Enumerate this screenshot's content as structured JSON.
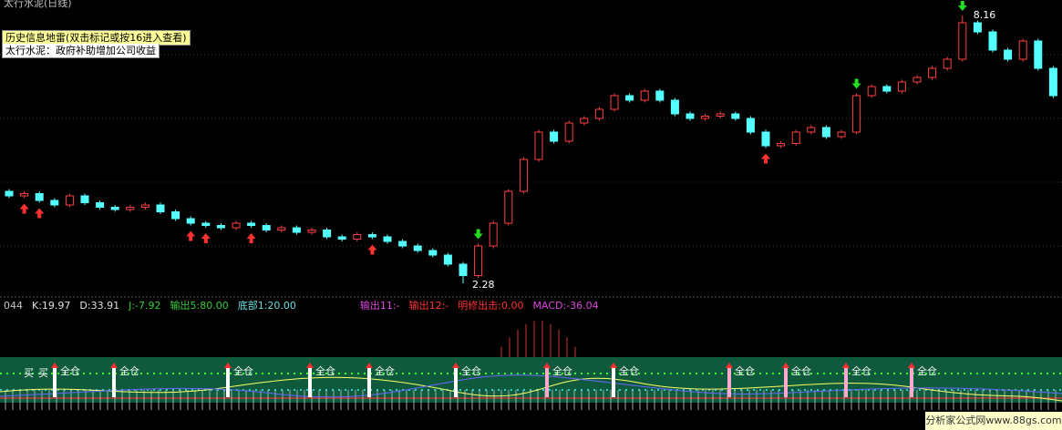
{
  "header": {
    "title": "太行水泥(日线)"
  },
  "mine": {
    "line1": "历史信息地雷(双击标记或按16进入查看)",
    "line2": "太行水泥：政府补助增加公司收益"
  },
  "price": {
    "ylim": [
      2.0,
      8.4
    ],
    "high_label": "8.16",
    "low_label": "2.28",
    "candles": [
      [
        4.3,
        4.35,
        4.15,
        4.2
      ],
      [
        4.2,
        4.3,
        4.15,
        4.25
      ],
      [
        4.25,
        4.3,
        4.05,
        4.1
      ],
      [
        4.1,
        4.15,
        3.95,
        4.0
      ],
      [
        4.0,
        4.25,
        3.95,
        4.2
      ],
      [
        4.2,
        4.25,
        4.0,
        4.05
      ],
      [
        4.05,
        4.1,
        3.9,
        3.95
      ],
      [
        3.95,
        4.0,
        3.85,
        3.9
      ],
      [
        3.9,
        4.0,
        3.85,
        3.95
      ],
      [
        3.95,
        4.05,
        3.9,
        4.0
      ],
      [
        4.0,
        4.05,
        3.8,
        3.85
      ],
      [
        3.85,
        3.9,
        3.65,
        3.7
      ],
      [
        3.7,
        3.75,
        3.55,
        3.6
      ],
      [
        3.6,
        3.65,
        3.5,
        3.55
      ],
      [
        3.55,
        3.6,
        3.45,
        3.5
      ],
      [
        3.5,
        3.65,
        3.45,
        3.6
      ],
      [
        3.6,
        3.65,
        3.5,
        3.55
      ],
      [
        3.55,
        3.6,
        3.4,
        3.45
      ],
      [
        3.45,
        3.55,
        3.4,
        3.5
      ],
      [
        3.5,
        3.55,
        3.35,
        3.4
      ],
      [
        3.4,
        3.5,
        3.35,
        3.45
      ],
      [
        3.45,
        3.5,
        3.25,
        3.3
      ],
      [
        3.3,
        3.35,
        3.2,
        3.25
      ],
      [
        3.25,
        3.4,
        3.2,
        3.35
      ],
      [
        3.35,
        3.4,
        3.25,
        3.3
      ],
      [
        3.3,
        3.35,
        3.15,
        3.2
      ],
      [
        3.2,
        3.25,
        3.05,
        3.1
      ],
      [
        3.1,
        3.15,
        2.95,
        3.0
      ],
      [
        3.0,
        3.05,
        2.85,
        2.9
      ],
      [
        2.9,
        2.95,
        2.65,
        2.7
      ],
      [
        2.7,
        2.75,
        2.28,
        2.45
      ],
      [
        2.45,
        3.15,
        2.4,
        3.1
      ],
      [
        3.1,
        3.65,
        3.05,
        3.6
      ],
      [
        3.6,
        4.35,
        3.55,
        4.3
      ],
      [
        4.3,
        5.05,
        4.25,
        5.0
      ],
      [
        5.0,
        5.65,
        4.95,
        5.6
      ],
      [
        5.6,
        5.65,
        5.35,
        5.4
      ],
      [
        5.4,
        5.85,
        5.35,
        5.8
      ],
      [
        5.8,
        5.95,
        5.75,
        5.9
      ],
      [
        5.9,
        6.15,
        5.85,
        6.1
      ],
      [
        6.1,
        6.45,
        6.05,
        6.4
      ],
      [
        6.4,
        6.45,
        6.25,
        6.3
      ],
      [
        6.3,
        6.55,
        6.25,
        6.5
      ],
      [
        6.5,
        6.55,
        6.25,
        6.3
      ],
      [
        6.3,
        6.35,
        5.95,
        6.0
      ],
      [
        6.0,
        6.05,
        5.85,
        5.9
      ],
      [
        5.9,
        6.0,
        5.85,
        5.95
      ],
      [
        5.95,
        6.05,
        5.9,
        6.0
      ],
      [
        6.0,
        6.05,
        5.85,
        5.9
      ],
      [
        5.9,
        5.95,
        5.55,
        5.6
      ],
      [
        5.6,
        5.65,
        5.25,
        5.3
      ],
      [
        5.3,
        5.4,
        5.25,
        5.35
      ],
      [
        5.35,
        5.65,
        5.3,
        5.6
      ],
      [
        5.6,
        5.75,
        5.55,
        5.7
      ],
      [
        5.7,
        5.75,
        5.45,
        5.5
      ],
      [
        5.5,
        5.65,
        5.45,
        5.6
      ],
      [
        5.6,
        6.45,
        5.55,
        6.4
      ],
      [
        6.4,
        6.65,
        6.35,
        6.6
      ],
      [
        6.6,
        6.65,
        6.45,
        6.5
      ],
      [
        6.5,
        6.75,
        6.45,
        6.7
      ],
      [
        6.7,
        6.85,
        6.65,
        6.8
      ],
      [
        6.8,
        7.05,
        6.75,
        7.0
      ],
      [
        7.0,
        7.25,
        6.95,
        7.2
      ],
      [
        7.2,
        8.16,
        7.15,
        8.0
      ],
      [
        8.0,
        8.05,
        7.75,
        7.8
      ],
      [
        7.8,
        7.85,
        7.35,
        7.4
      ],
      [
        7.4,
        7.45,
        7.15,
        7.2
      ],
      [
        7.2,
        7.65,
        7.15,
        7.6
      ],
      [
        7.6,
        7.65,
        6.95,
        7.0
      ],
      [
        7.0,
        7.05,
        6.35,
        6.4
      ]
    ]
  },
  "indicator": {
    "items": [
      {
        "text": "044",
        "color": "#c0c0c0"
      },
      {
        "text": "K:19.97",
        "color": "#e0e0e0"
      },
      {
        "text": "D:33.91",
        "color": "#e0e0e0"
      },
      {
        "text": "J:-7.92",
        "color": "#33cc33"
      },
      {
        "text": "输出5:80.00",
        "color": "#33cc33"
      },
      {
        "text": "底部1:20.00",
        "color": "#66dddd"
      },
      {
        "text": "输出11:-",
        "color": "#dd44dd"
      },
      {
        "text": "输出12:-",
        "color": "#ff3333"
      },
      {
        "text": "明修出击:0.00",
        "color": "#ff3333"
      },
      {
        "text": "MACD:-36.04",
        "color": "#dd44dd"
      }
    ],
    "buy": [
      "买",
      "买"
    ],
    "signal": "全仓"
  },
  "watermark": "分析家公式网www.88gs.com"
}
